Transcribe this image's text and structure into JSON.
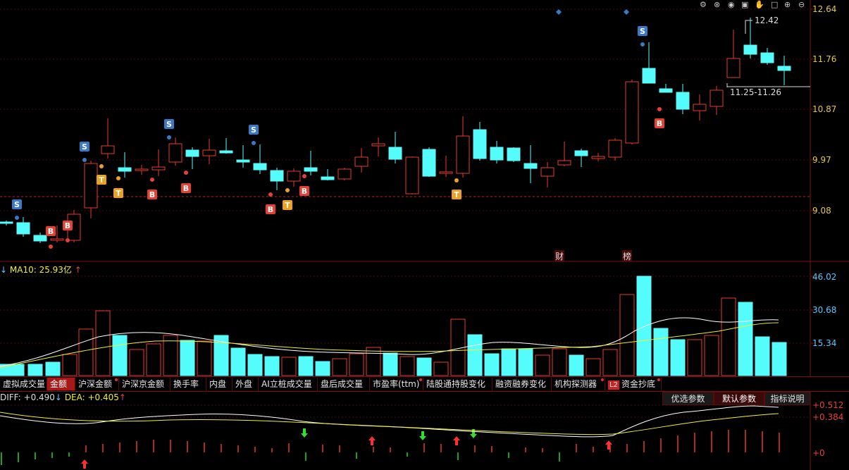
{
  "price_axis": {
    "ticks": [
      "12.64",
      "11.76",
      "10.87",
      "9.97",
      "9.08"
    ]
  },
  "volume_axis": {
    "ticks": [
      "46.02",
      "30.68",
      "15.34"
    ]
  },
  "macd_axis": {
    "ticks": [
      "+0.512",
      "+0.384",
      "+0"
    ]
  },
  "annotations": {
    "high": "12.42",
    "range": "11.25-11.26",
    "cai": "财",
    "bang": "榜"
  },
  "volume_legend": {
    "ma10": "MA10: 25.93亿"
  },
  "macd_legend": {
    "diff": "DIFF: +0.490",
    "dea": "DEA: +0.405"
  },
  "markers": {
    "sell": "S",
    "buy": "B",
    "t": "T"
  },
  "tabs": [
    {
      "label": "虚拟成交量"
    },
    {
      "label": "金额"
    },
    {
      "label": "沪深金额"
    },
    {
      "label": "沪深京金额"
    },
    {
      "label": "换手率"
    },
    {
      "label": "内盘"
    },
    {
      "label": "外盘"
    },
    {
      "label": "AI立桩成交量"
    },
    {
      "label": "盘后成交量"
    },
    {
      "label": "市盈率(ttm)"
    },
    {
      "label": "陆股通持股变化"
    },
    {
      "label": "融资融券变化"
    },
    {
      "label": "机构探测器"
    },
    {
      "label": "资金抄底",
      "badge": "L2"
    }
  ],
  "param_buttons": [
    {
      "label": "优选参数"
    },
    {
      "label": "默认参数"
    },
    {
      "label": "指标说明"
    }
  ],
  "colors": {
    "up": "#e8392b",
    "down": "#54fcfc",
    "ma_white": "#ffffff",
    "ma_yellow": "#f0f02a",
    "accent": "#e6c84a",
    "border": "#7a1010"
  }
}
